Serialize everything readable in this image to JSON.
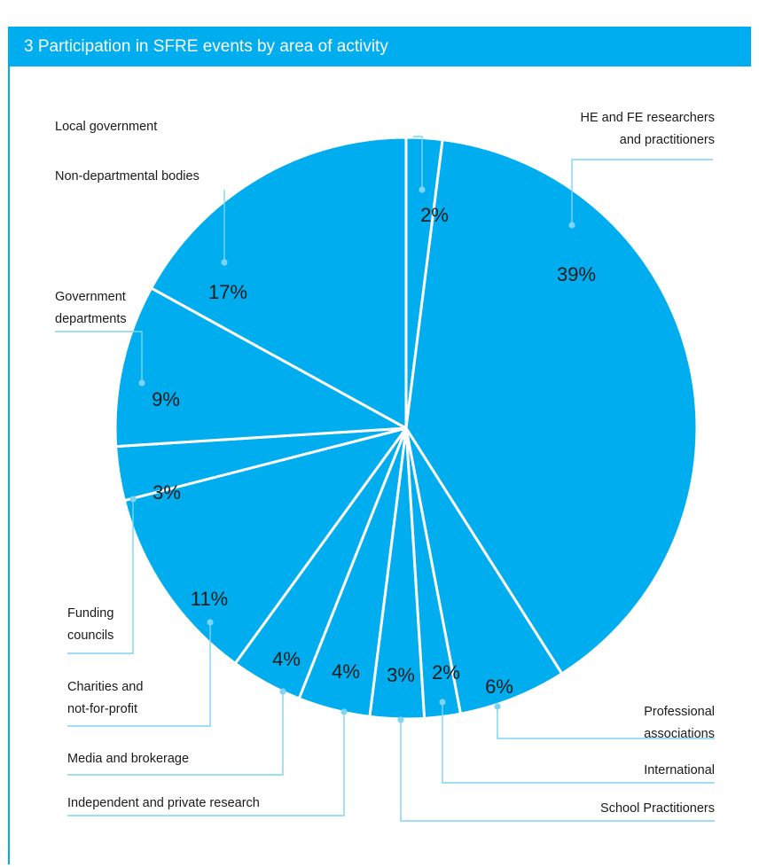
{
  "header": {
    "number": "3",
    "title": "Participation in SFRE events by area of activity"
  },
  "colors": {
    "slice": "#00adee",
    "separator": "#ffffff",
    "leader": "#7fd3f3",
    "header": "#00adee"
  },
  "chart_data": {
    "type": "pie",
    "title": "Participation in SFRE events by area of activity",
    "slices": [
      {
        "label": "Local government",
        "value": 2,
        "value_label": "2%"
      },
      {
        "label": "HE and FE researchers and practitioners",
        "label_lines": [
          "HE and FE researchers",
          "and practitioners"
        ],
        "value": 39,
        "value_label": "39%"
      },
      {
        "label": "Professional associations",
        "label_lines": [
          "Professional",
          "associations"
        ],
        "value": 6,
        "value_label": "6%"
      },
      {
        "label": "International",
        "value": 2,
        "value_label": "2%"
      },
      {
        "label": "School Practitioners",
        "value": 3,
        "value_label": "3%"
      },
      {
        "label": "Independent and private research",
        "value": 4,
        "value_label": "4%"
      },
      {
        "label": "Media and brokerage",
        "value": 4,
        "value_label": "4%"
      },
      {
        "label": "Charities and not-for-profit",
        "label_lines": [
          "Charities and",
          "not-for-profit"
        ],
        "value": 11,
        "value_label": "11%"
      },
      {
        "label": "Funding councils",
        "label_lines": [
          "Funding",
          "councils"
        ],
        "value": 3,
        "value_label": "3%"
      },
      {
        "label": "Government departments",
        "label_lines": [
          "Government",
          "departments"
        ],
        "value": 9,
        "value_label": "9%"
      },
      {
        "label": "Non-departmental bodies",
        "value": 17,
        "value_label": "17%"
      }
    ]
  }
}
